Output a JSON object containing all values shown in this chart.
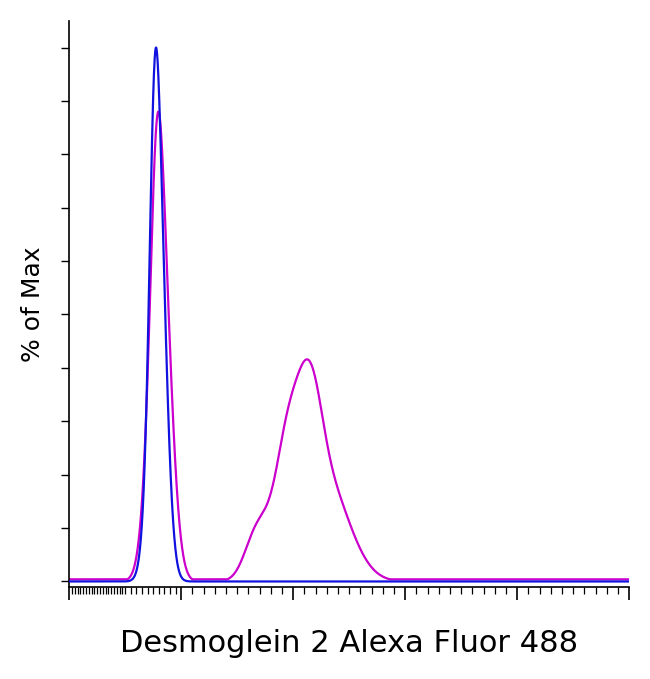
{
  "title": "",
  "xlabel": "Desmoglein 2 Alexa Fluor 488",
  "ylabel": "% of Max",
  "xlabel_fontsize": 22,
  "ylabel_fontsize": 18,
  "background_color": "#ffffff",
  "line_color_blue": "#1212e0",
  "line_color_magenta": "#cc00cc",
  "linewidth": 1.6,
  "xlim": [
    0,
    1000
  ],
  "ylim": [
    -0.01,
    1.05
  ]
}
